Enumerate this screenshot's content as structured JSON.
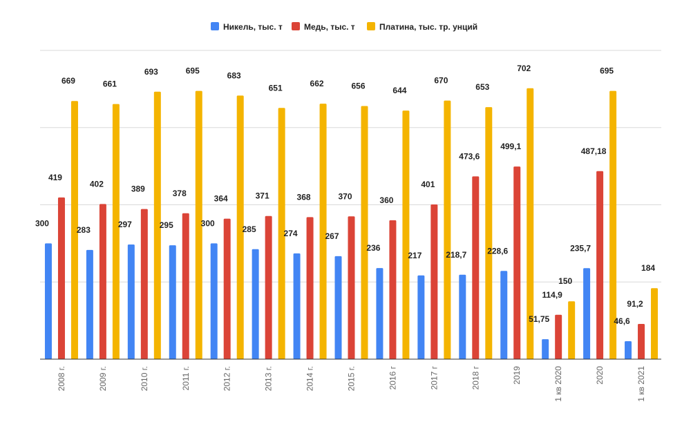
{
  "chart_data": {
    "type": "bar",
    "title": "",
    "xlabel": "",
    "ylabel": "",
    "ylim": [
      0,
      800
    ],
    "grid": true,
    "legend_position": "top",
    "categories": [
      "2008 г.",
      "2009 г.",
      "2010 г.",
      "2011 г.",
      "2012 г.",
      "2013 г.",
      "2014 г.",
      "2015 г.",
      "2016 г",
      "2017 г",
      "2018 г",
      "2019",
      "1 кв 2020",
      "2020",
      "1 кв 2021"
    ],
    "series": [
      {
        "name": "Никель, тыс. т",
        "color": "#4285f4",
        "values": [
          300,
          283,
          297,
          295,
          300,
          285,
          274,
          267,
          236,
          217,
          218.7,
          228.6,
          51.75,
          235.7,
          46.6
        ],
        "labels": [
          "300",
          "283",
          "297",
          "295",
          "300",
          "285",
          "274",
          "267",
          "236",
          "217",
          "218,7",
          "228,6",
          "51,75",
          "235,7",
          "46,6"
        ]
      },
      {
        "name": "Медь, тыс. т",
        "color": "#db4437",
        "values": [
          419,
          402,
          389,
          378,
          364,
          371,
          368,
          370,
          360,
          401,
          473.6,
          499.1,
          114.9,
          487.18,
          91.2
        ],
        "labels": [
          "419",
          "402",
          "389",
          "378",
          "364",
          "371",
          "368",
          "370",
          "360",
          "401",
          "473,6",
          "499,1",
          "114,9",
          "487,18",
          "91,2"
        ]
      },
      {
        "name": "Платина, тыс. тр. унций",
        "color": "#f4b400",
        "values": [
          669,
          661,
          693,
          695,
          683,
          651,
          662,
          656,
          644,
          670,
          653,
          702,
          150,
          695,
          184
        ],
        "labels": [
          "669",
          "661",
          "693",
          "695",
          "683",
          "651",
          "662",
          "656",
          "644",
          "670",
          "653",
          "702",
          "150",
          "695",
          "184"
        ]
      }
    ]
  }
}
